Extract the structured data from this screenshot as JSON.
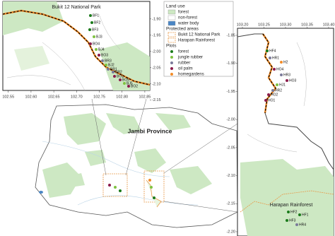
{
  "left_inset": {
    "title": "Bukit 12 National Park",
    "xlim": [
      102.538,
      102.861
    ],
    "ylim": [
      -2.12,
      -1.846
    ],
    "xticks": [
      102.55,
      {
        "value": 102.6,
        "label": "102.60"
      },
      102.65,
      {
        "value": 102.7,
        "label": "102.70"
      },
      102.75,
      {
        "value": 102.8,
        "label": "102.80"
      },
      102.85
    ],
    "yticks": [
      {
        "value": -1.9,
        "label": "-1.90"
      },
      -1.95,
      {
        "value": -2,
        "label": "-2.00"
      },
      -2.05,
      {
        "value": -2.1,
        "label": "-2.10"
      },
      -2.15
    ],
    "plots": [
      "BF1",
      "BF2",
      "BF3",
      "BJ3",
      "BO4",
      "BJ4",
      "BO3",
      "BR3",
      "BJ2",
      "BR1",
      "BR2",
      "BO1",
      "BO5",
      "BJ5",
      "BO2"
    ]
  },
  "right_inset": {
    "title": "Harapan Rainforest",
    "xlim": [
      103.1885,
      103.4115
    ],
    "ylim": [
      -2.2076,
      -1.8374
    ],
    "xticks": [
      {
        "value": 103.2,
        "label": "103.20"
      },
      103.25,
      {
        "value": 103.3,
        "label": "103.30"
      },
      103.35,
      {
        "value": 103.4,
        "label": "103.40"
      }
    ],
    "yticks": [
      -1.85,
      {
        "value": -1.9,
        "label": "-1.90"
      },
      -1.95,
      {
        "value": -2,
        "label": "-2.00"
      },
      -2.05,
      {
        "value": -2.1,
        "label": "-2.10"
      },
      -2.15,
      {
        "value": -2.2,
        "label": "-2.20"
      }
    ],
    "plots": [
      "HF4",
      "HR1",
      "H2",
      "HO4",
      "HR3",
      "HO3",
      "HJ1",
      "HR2",
      "HO2",
      "HO1",
      "HF2",
      "HF1",
      "HF3",
      "HR4"
    ]
  },
  "main_map": {
    "title": "Jambi Province"
  },
  "legend": {
    "land_use": {
      "title": "Land use",
      "items": [
        "forest",
        "non-forest",
        "water body"
      ]
    },
    "protected_areas": {
      "title": "Protected areas",
      "items": [
        "Bukit 12 National Park",
        "Harapan Rainforest"
      ]
    },
    "plots": {
      "title": "Plots",
      "items": [
        "forest",
        "jungle rubber",
        "rubber",
        "oil palm",
        "homegardens"
      ]
    }
  }
}
